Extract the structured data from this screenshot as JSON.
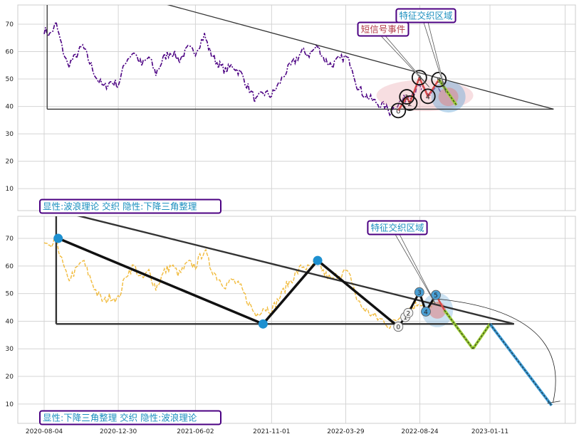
{
  "chart_data": [
    {
      "panel": "top",
      "type": "line",
      "ylim": [
        2,
        77
      ],
      "yticks": [
        "10",
        "20",
        "30",
        "40",
        "50",
        "60",
        "70"
      ],
      "grid": true,
      "series_color": "#4b0082",
      "price": [
        [
          "2020-08-04",
          68
        ],
        [
          "2020-08-15",
          66
        ],
        [
          "2020-08-28",
          70
        ],
        [
          "2020-09-08",
          62
        ],
        [
          "2020-09-20",
          55
        ],
        [
          "2020-10-05",
          58
        ],
        [
          "2020-10-20",
          62
        ],
        [
          "2020-11-03",
          56
        ],
        [
          "2020-11-18",
          50
        ],
        [
          "2020-12-01",
          47
        ],
        [
          "2020-12-15",
          49
        ],
        [
          "2020-12-30",
          48
        ],
        [
          "2021-01-15",
          57
        ],
        [
          "2021-01-30",
          60
        ],
        [
          "2021-02-15",
          55
        ],
        [
          "2021-03-01",
          58
        ],
        [
          "2021-03-15",
          52
        ],
        [
          "2021-04-01",
          58
        ],
        [
          "2021-04-15",
          60
        ],
        [
          "2021-05-01",
          57
        ],
        [
          "2021-05-18",
          61
        ],
        [
          "2021-06-02",
          60
        ],
        [
          "2021-06-20",
          66
        ],
        [
          "2021-07-01",
          60
        ],
        [
          "2021-07-15",
          56
        ],
        [
          "2021-08-01",
          53
        ],
        [
          "2021-08-15",
          55
        ],
        [
          "2021-09-01",
          52
        ],
        [
          "2021-09-15",
          47
        ],
        [
          "2021-10-01",
          42
        ],
        [
          "2021-10-15",
          45
        ],
        [
          "2021-11-01",
          44
        ],
        [
          "2021-11-15",
          48
        ],
        [
          "2021-12-01",
          53
        ],
        [
          "2021-12-15",
          56
        ],
        [
          "2022-01-01",
          60
        ],
        [
          "2022-01-15",
          59
        ],
        [
          "2022-02-01",
          62
        ],
        [
          "2022-02-15",
          57
        ],
        [
          "2022-03-01",
          55
        ],
        [
          "2022-03-15",
          57
        ],
        [
          "2022-03-29",
          58
        ],
        [
          "2022-04-10",
          55
        ],
        [
          "2022-04-20",
          48
        ],
        [
          "2022-05-01",
          45
        ],
        [
          "2022-05-15",
          43
        ],
        [
          "2022-06-01",
          41
        ],
        [
          "2022-06-15",
          40
        ],
        [
          "2022-06-25",
          38
        ],
        [
          "2022-07-05",
          40
        ],
        [
          "2022-07-18",
          42
        ],
        [
          "2022-08-01",
          44
        ],
        [
          "2022-08-24",
          47
        ],
        [
          "2022-09-10",
          44
        ],
        [
          "2022-09-25",
          47
        ],
        [
          "2022-10-05",
          45
        ]
      ],
      "pattern_lines": [
        {
          "name": "triangle-upper",
          "points": [
            [
              "2020-08-10",
              89
            ],
            [
              "2023-05-18",
              39
            ]
          ]
        },
        {
          "name": "triangle-lower",
          "points": [
            [
              "2020-08-10",
              39
            ],
            [
              "2023-05-18",
              39
            ]
          ]
        },
        {
          "name": "triangle-left",
          "points": [
            [
              "2020-08-10",
              39
            ],
            [
              "2020-08-10",
              89
            ]
          ]
        }
      ],
      "wave_points": [
        {
          "label": "0",
          "x": "2022-07-12",
          "y": 38.5
        },
        {
          "label": "1",
          "x": "2022-07-29",
          "y": 43.5
        },
        {
          "label": "2",
          "x": "2022-08-04",
          "y": 41.2
        },
        {
          "label": "3",
          "x": "2022-08-23",
          "y": 50.5
        },
        {
          "label": "4",
          "x": "2022-09-09",
          "y": 43.7
        },
        {
          "label": "5",
          "x": "2022-10-01",
          "y": 49.8
        }
      ],
      "annotations": [
        {
          "text": "特征交织区域",
          "color": "#1b8fbf"
        },
        {
          "text": "短信号事件",
          "color": "#b23a48"
        }
      ],
      "caption": "显性:波浪理论 交织 隐性:下降三角整理"
    },
    {
      "panel": "bottom",
      "type": "line",
      "ylim": [
        3,
        78
      ],
      "yticks": [
        "10",
        "20",
        "30",
        "40",
        "50",
        "60",
        "70"
      ],
      "xticks": [
        "2020-08-04",
        "2020-12-30",
        "2021-06-02",
        "2021-11-01",
        "2022-03-29",
        "2022-08-24",
        "2023-01-11"
      ],
      "grid": true,
      "series_color": "#f0b428",
      "pivots": [
        {
          "x": "2020-09-01",
          "y": 70
        },
        {
          "x": "2021-10-15",
          "y": 39
        },
        {
          "x": "2022-02-01",
          "y": 62
        }
      ],
      "wave_points": [
        {
          "label": "0",
          "x": "2022-07-12",
          "y": 38
        },
        {
          "label": "1",
          "x": "2022-07-26",
          "y": 41.5
        },
        {
          "label": "2",
          "x": "2022-08-01",
          "y": 43
        },
        {
          "label": "3",
          "x": "2022-08-23",
          "y": 50.5
        },
        {
          "label": "4",
          "x": "2022-09-05",
          "y": 43.5
        },
        {
          "label": "5",
          "x": "2022-09-25",
          "y": 49.5
        }
      ],
      "projection": [
        [
          "2022-10-12",
          44
        ],
        [
          "2022-12-08",
          30
        ],
        [
          "2023-01-11",
          39
        ],
        [
          "2023-05-14",
          9.5
        ]
      ],
      "annotations": [
        {
          "text": "特征交织区域",
          "color": "#1b8fbf"
        }
      ],
      "caption": "显性:下降三角整理 交织 隐性:波浪理论"
    }
  ],
  "colors": {
    "label_border": "#4b0082",
    "label_text_blue": "#1b8fbf",
    "label_text_red": "#b23a48",
    "pattern_black": "#1a1a1a",
    "pivot_blue": "#1e90d0",
    "proj_green": "#9acd32",
    "proj_blue": "#3a9bd6"
  }
}
